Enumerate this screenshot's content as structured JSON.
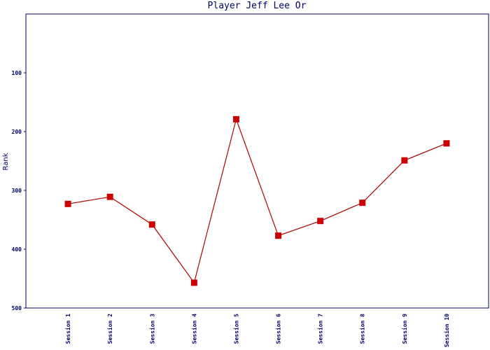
{
  "chart_data": {
    "type": "line",
    "title": "Player Jeff Lee Or",
    "y_label": "Rank",
    "categories": [
      "Session 1",
      "Session 2",
      "Session 3",
      "Session 4",
      "Session 5",
      "Session 6",
      "Session 7",
      "Session 8",
      "Session 9",
      "Session 10"
    ],
    "series": [
      {
        "name": "Rank",
        "color": "#b00000",
        "marker_color": "#cc0000",
        "values": [
          323,
          311,
          358,
          457,
          179,
          377,
          352,
          321,
          249,
          220
        ]
      }
    ],
    "ylim": [
      0,
      500
    ],
    "yticks": [
      100,
      200,
      300,
      400,
      500
    ],
    "y_inverted": true,
    "grid": false
  }
}
